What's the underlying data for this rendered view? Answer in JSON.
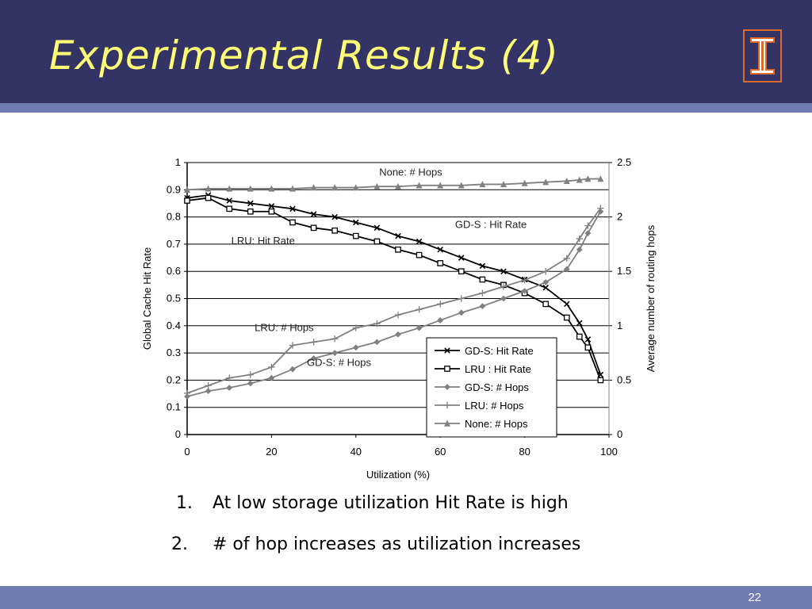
{
  "slide": {
    "title": "Experimental Results (4)",
    "page_number": "22",
    "logo_icon": "university-of-illinois-logo",
    "colors": {
      "header": "#333366",
      "accent_bar": "#6f7db2",
      "title": "#fefc74",
      "logo": "#dd6a2b"
    }
  },
  "notes": [
    {
      "num": "1.",
      "text": "At low storage utilization Hit Rate is high"
    },
    {
      "num": "2.",
      "text": "# of hop increases as utilization increases"
    }
  ],
  "chart_data": {
    "type": "line",
    "title": "",
    "xlabel": "Utilization (%)",
    "ylabel": "Global Cache Hit Rate",
    "y2label": "Average number of routing hops",
    "xlim": [
      0,
      100
    ],
    "ylim": [
      0,
      1
    ],
    "y2lim": [
      0,
      2.5
    ],
    "x_ticks": [
      "0",
      "20",
      "40",
      "60",
      "80",
      "100"
    ],
    "y_ticks": [
      "0",
      "0.1",
      "0.2",
      "0.3",
      "0.4",
      "0.5",
      "0.6",
      "0.7",
      "0.8",
      "0.9",
      "1"
    ],
    "y2_ticks": [
      "0",
      "0.5",
      "1",
      "1.5",
      "2",
      "2.5"
    ],
    "grid": "horizontal",
    "legend_position": "bottom-right",
    "x": [
      0,
      5,
      10,
      15,
      20,
      25,
      30,
      35,
      40,
      45,
      50,
      55,
      60,
      65,
      70,
      75,
      80,
      85,
      90,
      93,
      95,
      98
    ],
    "series": [
      {
        "name": "GD-S: Hit Rate",
        "axis": "left",
        "marker": "x",
        "color": "#000000",
        "values": [
          0.87,
          0.88,
          0.86,
          0.85,
          0.84,
          0.83,
          0.81,
          0.8,
          0.78,
          0.76,
          0.73,
          0.71,
          0.68,
          0.65,
          0.62,
          0.6,
          0.57,
          0.54,
          0.48,
          0.41,
          0.35,
          0.22
        ]
      },
      {
        "name": "LRU : Hit Rate",
        "axis": "left",
        "marker": "square",
        "color": "#000000",
        "values": [
          0.86,
          0.87,
          0.83,
          0.82,
          0.82,
          0.78,
          0.76,
          0.75,
          0.73,
          0.71,
          0.68,
          0.66,
          0.63,
          0.6,
          0.57,
          0.55,
          0.52,
          0.48,
          0.43,
          0.36,
          0.32,
          0.2
        ]
      },
      {
        "name": "GD-S: # Hops",
        "axis": "right",
        "marker": "diamond",
        "color": "#808080",
        "values": [
          0.35,
          0.4,
          0.43,
          0.47,
          0.52,
          0.6,
          0.7,
          0.75,
          0.8,
          0.85,
          0.92,
          0.98,
          1.05,
          1.12,
          1.18,
          1.25,
          1.32,
          1.4,
          1.52,
          1.7,
          1.85,
          2.05
        ]
      },
      {
        "name": "LRU: # Hops",
        "axis": "right",
        "marker": "plus",
        "color": "#808080",
        "values": [
          0.38,
          0.45,
          0.52,
          0.55,
          0.62,
          0.82,
          0.85,
          0.88,
          0.98,
          1.02,
          1.1,
          1.15,
          1.2,
          1.25,
          1.3,
          1.36,
          1.42,
          1.5,
          1.62,
          1.8,
          1.92,
          2.08
        ]
      },
      {
        "name": "None: # Hops",
        "axis": "right",
        "marker": "triangle",
        "color": "#808080",
        "values": [
          2.25,
          2.26,
          2.26,
          2.26,
          2.26,
          2.26,
          2.27,
          2.27,
          2.27,
          2.28,
          2.28,
          2.29,
          2.29,
          2.29,
          2.3,
          2.3,
          2.31,
          2.32,
          2.33,
          2.34,
          2.35,
          2.35
        ]
      }
    ],
    "annotations": [
      {
        "text": "None: # Hops",
        "x": 53,
        "y2": 2.38
      },
      {
        "text": "GD-S : Hit Rate",
        "x": 72,
        "y": 0.76
      },
      {
        "text": "LRU: Hit Rate",
        "x": 18,
        "y": 0.7
      },
      {
        "text": "LRU: # Hops",
        "x": 23,
        "y2": 0.95
      },
      {
        "text": "GD-S: # Hops",
        "x": 36,
        "y2": 0.63
      }
    ]
  }
}
